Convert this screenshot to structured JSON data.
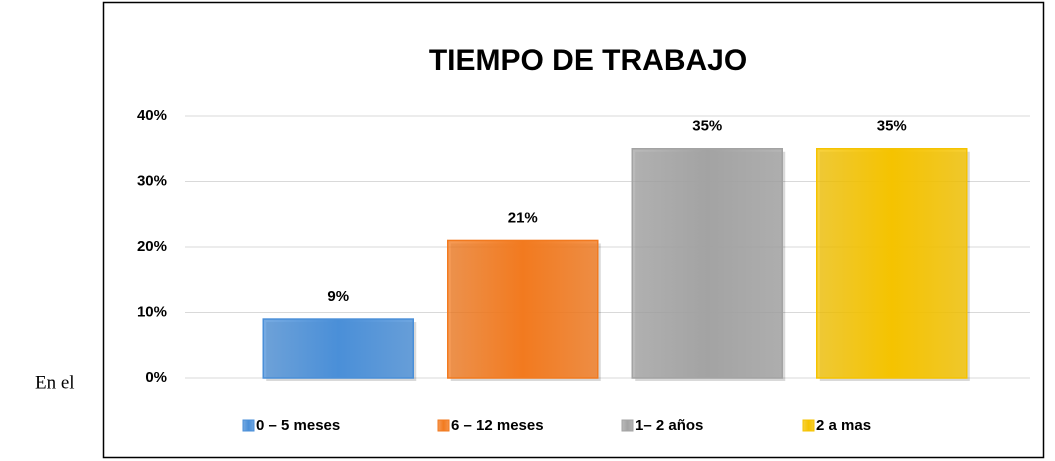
{
  "side_text": "En el",
  "chart_data": {
    "type": "bar",
    "title": "TIEMPO DE TRABAJO",
    "categories": [
      "0 – 5 meses",
      "6 – 12 meses",
      "1– 2 años",
      "2 a mas"
    ],
    "values": [
      9,
      21,
      35,
      35
    ],
    "value_labels": [
      "9%",
      "21%",
      "35%",
      "35%"
    ],
    "colors": [
      "#4a8fd8",
      "#f27a1f",
      "#a3a3a3",
      "#f5c300"
    ],
    "ylim": [
      0,
      40
    ],
    "yticks": [
      {
        "value": 0,
        "label": "0%"
      },
      {
        "value": 10,
        "label": "10%"
      },
      {
        "value": 20,
        "label": "20%"
      },
      {
        "value": 30,
        "label": "30%"
      },
      {
        "value": 40,
        "label": "40%"
      }
    ],
    "grid": true,
    "legend": "bottom"
  }
}
